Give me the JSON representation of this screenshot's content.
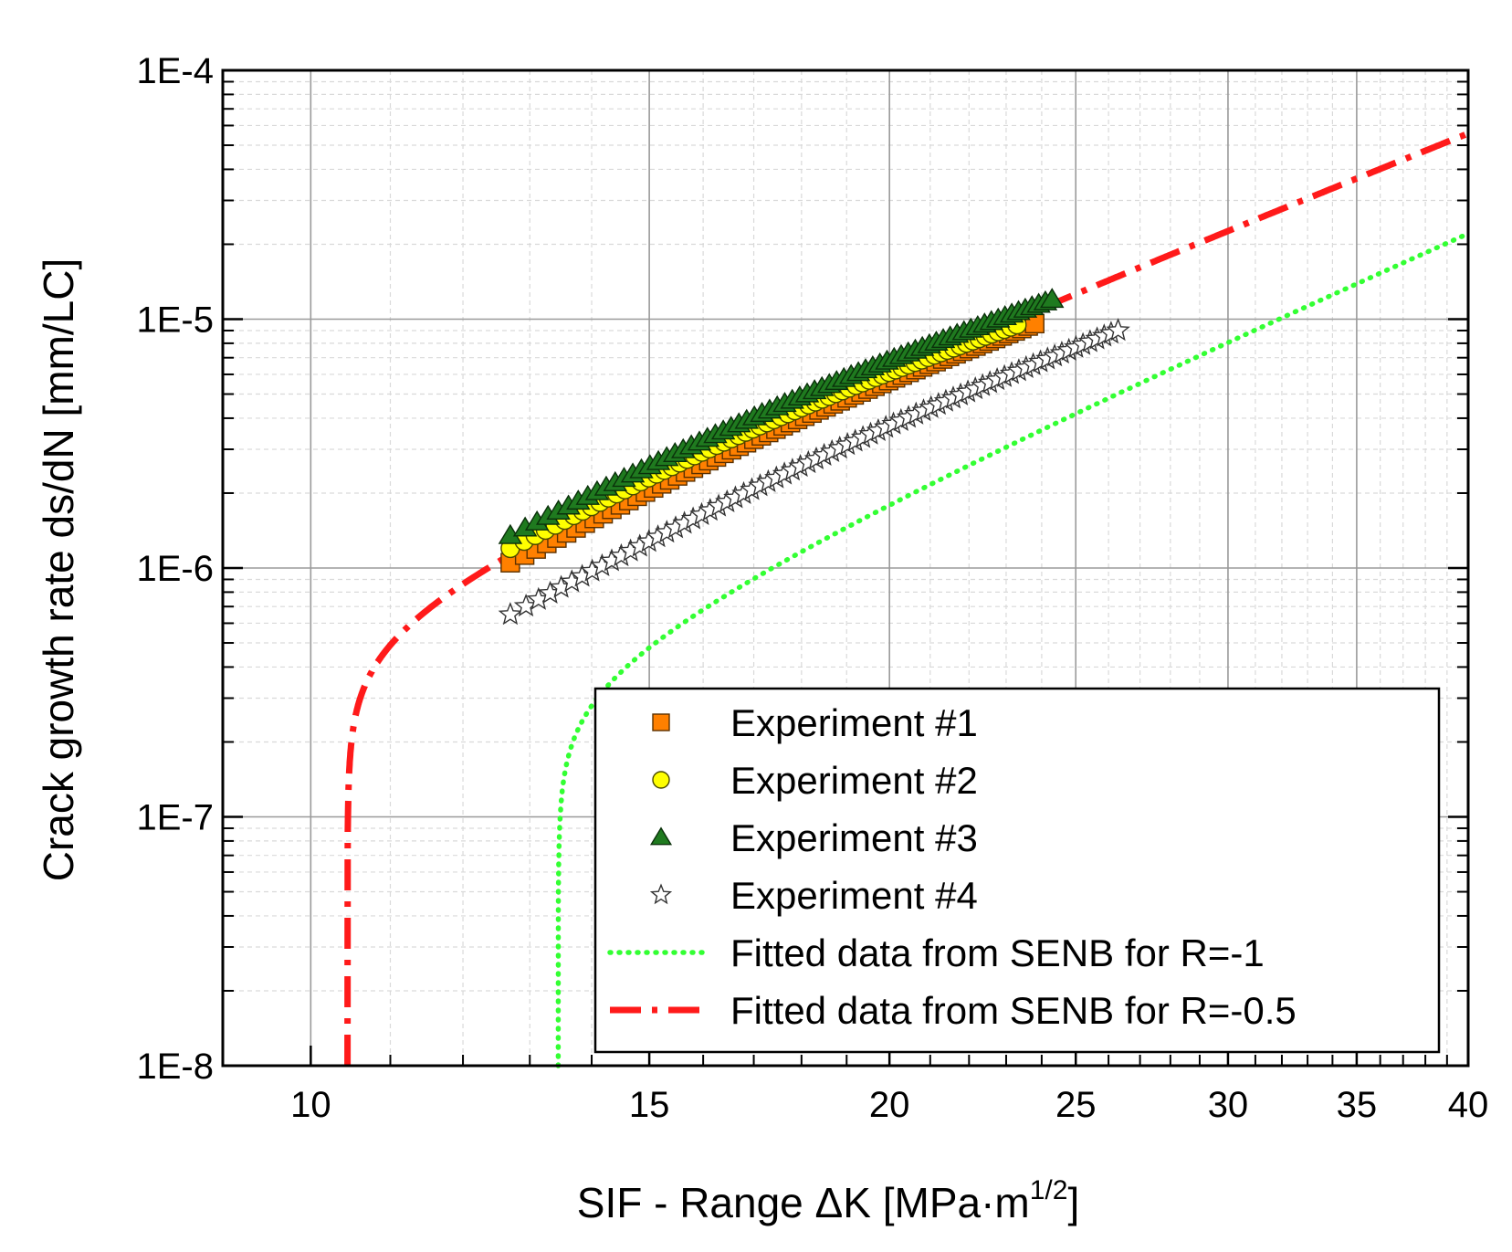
{
  "chart_data": {
    "type": "scatter",
    "title": "",
    "xlabel_main": "SIF - Range ΔK [MPa·m",
    "xlabel_sup": "1/2",
    "xlabel_close": "]",
    "ylabel": "Crack growth rate ds/dN [mm/LC]",
    "xscale": "log",
    "yscale": "log",
    "xlim": [
      9,
      40
    ],
    "ylim": [
      1e-08,
      0.0001
    ],
    "grid": true,
    "legend_position": "bottom-right",
    "x_ticks": [
      {
        "value": 10,
        "label": "10"
      },
      {
        "value": 15,
        "label": "15"
      },
      {
        "value": 20,
        "label": "20"
      },
      {
        "value": 25,
        "label": "25"
      },
      {
        "value": 30,
        "label": "30"
      },
      {
        "value": 35,
        "label": "35"
      },
      {
        "value": 40,
        "label": "40"
      }
    ],
    "y_ticks": [
      {
        "value": 1e-08,
        "label": "1E-8"
      },
      {
        "value": 1e-07,
        "label": "1E-7"
      },
      {
        "value": 1e-06,
        "label": "1E-6"
      },
      {
        "value": 1e-05,
        "label": "1E-5"
      },
      {
        "value": 0.0001,
        "label": "1E-4"
      }
    ],
    "series": [
      {
        "name": "Experiment #1",
        "kind": "marker",
        "marker": "square",
        "color": "#ff8000",
        "stroke": "#5a3000",
        "x_start": 12.7,
        "x_end": 23.8,
        "y_start": 1.05e-06,
        "y_end": 9.6e-06,
        "points": 70
      },
      {
        "name": "Experiment #2",
        "kind": "marker",
        "marker": "circle",
        "color": "#ffff00",
        "stroke": "#4a4a00",
        "x_start": 12.7,
        "x_end": 23.3,
        "y_start": 1.2e-06,
        "y_end": 9.5e-06,
        "points": 70
      },
      {
        "name": "Experiment #3",
        "kind": "marker",
        "marker": "triangle",
        "color": "#1f7a1f",
        "stroke": "#0a300a",
        "x_start": 12.7,
        "x_end": 24.3,
        "y_start": 1.35e-06,
        "y_end": 1.2e-05,
        "points": 70
      },
      {
        "name": "Experiment #4",
        "kind": "marker",
        "marker": "star",
        "color": "#ffffff",
        "stroke": "#333333",
        "x_start": 12.7,
        "x_end": 26.3,
        "y_start": 6.5e-07,
        "y_end": 9e-06,
        "points": 75
      },
      {
        "name": "Fitted data from SENB for R=-1",
        "kind": "line",
        "style": "dotted",
        "color": "#33ff33",
        "C": 1.3e-10,
        "m": 3.3,
        "K_th": 13.45
      },
      {
        "name": "Fitted data from SENB for R=-0.5",
        "kind": "line",
        "style": "dashdot",
        "color": "#ff1a1a",
        "C": 9.6e-10,
        "m": 3.0,
        "K_th": 10.45
      }
    ]
  }
}
